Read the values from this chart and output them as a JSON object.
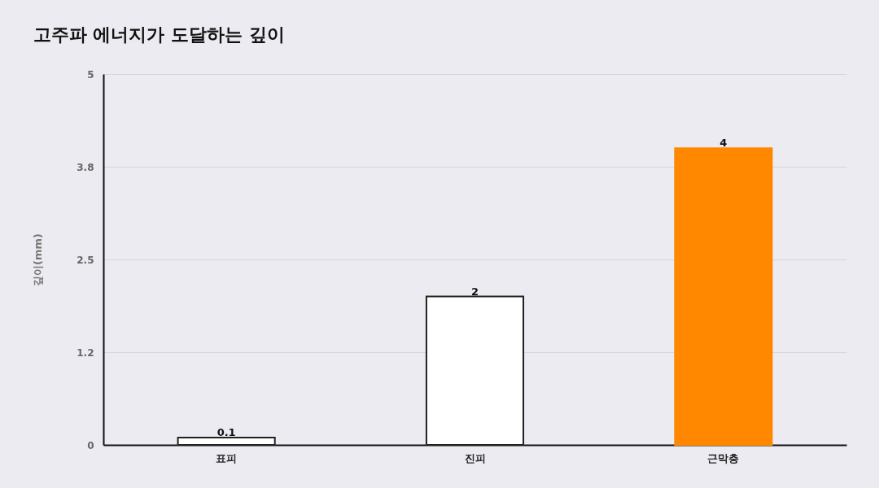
{
  "chart_data": {
    "type": "bar",
    "title": "고주파 에너지가 도달하는 깊이",
    "ylabel": "깊이(mm)",
    "categories": [
      "표피",
      "진피",
      "근막층"
    ],
    "values": [
      0.1,
      2,
      4
    ],
    "colors": [
      "#ffffff",
      "#ffffff",
      "#ff8800"
    ],
    "ylim": [
      0,
      5
    ],
    "yticks": [
      0,
      {
        "value": 1.25,
        "label": "1.2"
      },
      2.5,
      {
        "value": 3.75,
        "label": "3.8"
      },
      5
    ],
    "grid": "y",
    "data_labels": true
  }
}
